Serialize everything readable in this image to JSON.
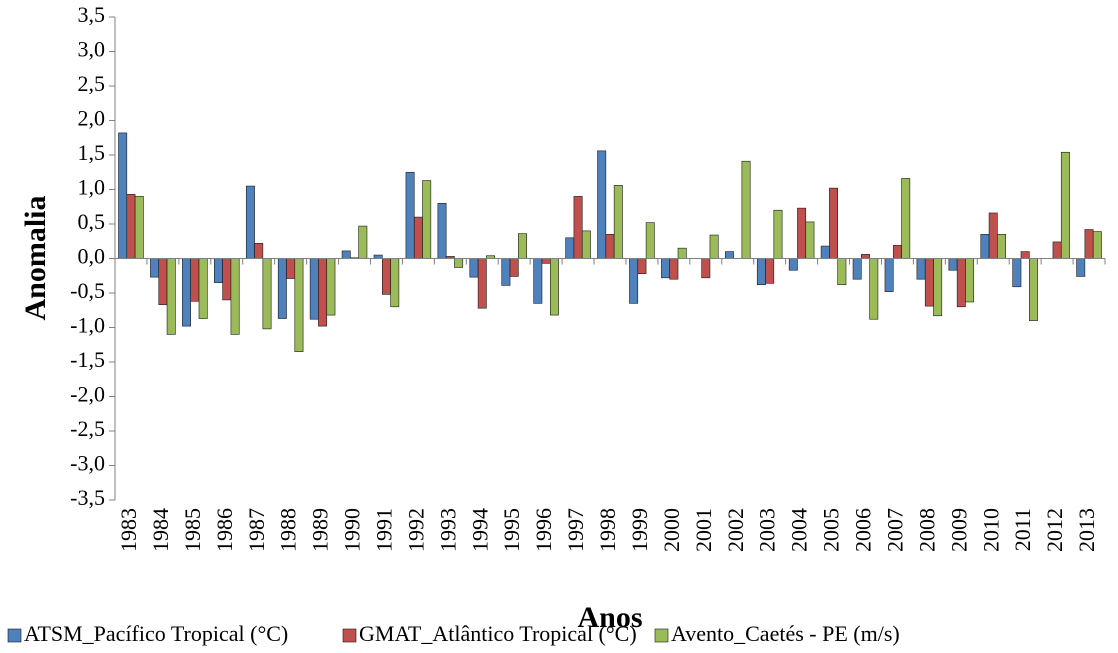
{
  "chart_data": {
    "type": "bar",
    "x_label": "Anos",
    "y_label": "Anomalia",
    "categories": [
      "1983",
      "1984",
      "1985",
      "1986",
      "1987",
      "1988",
      "1989",
      "1990",
      "1991",
      "1992",
      "1993",
      "1994",
      "1995",
      "1996",
      "1997",
      "1998",
      "1999",
      "2000",
      "2001",
      "2002",
      "2003",
      "2004",
      "2005",
      "2006",
      "2007",
      "2008",
      "2009",
      "2010",
      "2011",
      "2012",
      "2013"
    ],
    "series": [
      {
        "name": "ATSM_Pacífico Tropical (°C)",
        "color": "#4f81bd",
        "values": [
          1.82,
          -0.27,
          -0.98,
          -0.35,
          1.05,
          -0.87,
          -0.88,
          0.11,
          0.05,
          1.25,
          0.8,
          -0.27,
          -0.39,
          -0.65,
          0.3,
          1.56,
          -0.65,
          -0.28,
          0.0,
          0.1,
          -0.38,
          -0.17,
          0.18,
          -0.3,
          -0.48,
          -0.3,
          -0.17,
          0.35,
          -0.41,
          0.0,
          -0.26
        ]
      },
      {
        "name": "GMAT_Atlântico Tropical (°C)",
        "color": "#c0504d",
        "values": [
          0.93,
          -0.67,
          -0.62,
          -0.6,
          0.22,
          -0.29,
          -0.98,
          0.01,
          -0.52,
          0.6,
          0.03,
          -0.72,
          -0.26,
          -0.07,
          0.9,
          0.35,
          -0.22,
          -0.3,
          -0.28,
          0.0,
          -0.36,
          0.73,
          1.02,
          0.06,
          0.19,
          -0.69,
          -0.7,
          0.66,
          0.1,
          0.24,
          0.42
        ]
      },
      {
        "name": "Avento_Caetés - PE (m/s)",
        "color": "#9bbb59",
        "values": [
          0.9,
          -1.1,
          -0.87,
          -1.1,
          -1.02,
          -1.35,
          -0.82,
          0.47,
          -0.7,
          1.13,
          -0.13,
          0.04,
          0.36,
          -0.82,
          0.4,
          1.06,
          0.52,
          0.15,
          0.34,
          1.41,
          0.7,
          0.53,
          -0.38,
          -0.88,
          1.16,
          -0.83,
          -0.63,
          0.35,
          -0.9,
          1.54,
          0.39
        ]
      }
    ],
    "ylim": [
      -3.5,
      3.5
    ],
    "yticks": [
      {
        "value": -3.5,
        "label": "-3,5"
      },
      {
        "value": -3,
        "label": "-3,0"
      },
      {
        "value": -2.5,
        "label": "-2,5"
      },
      {
        "value": -2,
        "label": "-2,0"
      },
      {
        "value": -1.5,
        "label": "-1,5"
      },
      {
        "value": -1,
        "label": "-1,0"
      },
      {
        "value": -0.5,
        "label": "-0,5"
      },
      {
        "value": 0,
        "label": "0,0"
      },
      {
        "value": 0.5,
        "label": "0,5"
      },
      {
        "value": 1,
        "label": "1,0"
      },
      {
        "value": 1.5,
        "label": "1,5"
      },
      {
        "value": 2,
        "label": "2,0"
      },
      {
        "value": 2.5,
        "label": "2,5"
      },
      {
        "value": 3,
        "label": "3,0"
      },
      {
        "value": 3.5,
        "label": "3,5"
      }
    ],
    "grid": false,
    "legend_position": "bottom"
  }
}
